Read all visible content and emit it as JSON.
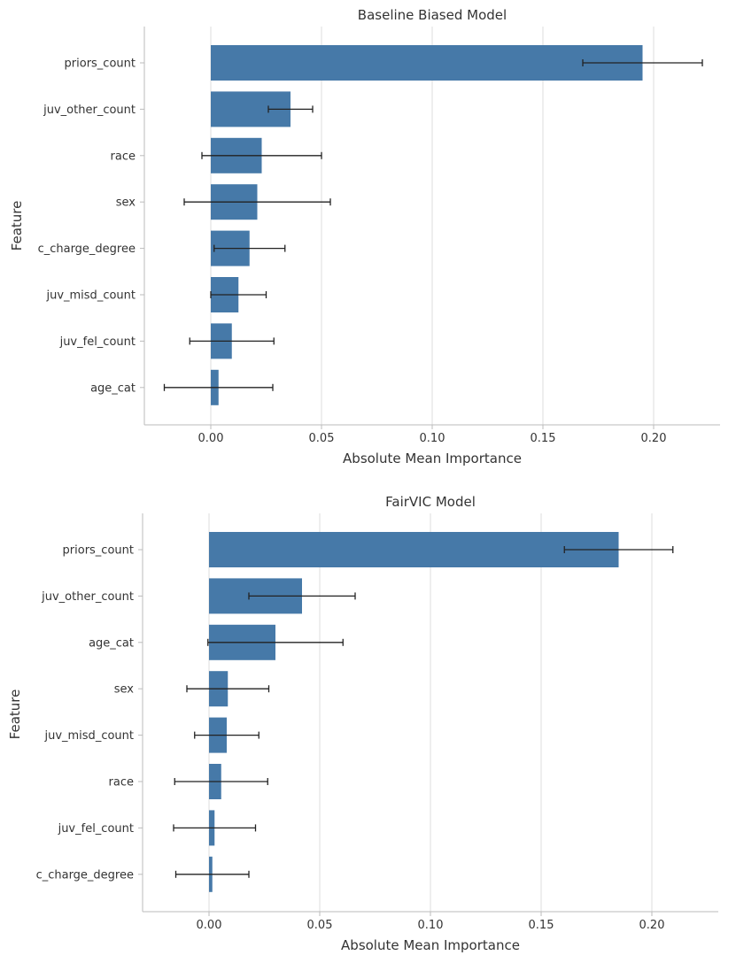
{
  "colors": {
    "bar": "#4679a8",
    "grid": "#dcdcdc",
    "axis": "#bbbbbb",
    "error": "#222222",
    "text": "#333333"
  },
  "chart_data": [
    {
      "type": "bar",
      "orientation": "horizontal",
      "title": "Baseline Biased Model",
      "xlabel": "Absolute Mean Importance",
      "ylabel": "Feature",
      "xlim": [
        -0.03,
        0.23
      ],
      "xticks": [
        0.0,
        0.05,
        0.1,
        0.15,
        0.2
      ],
      "xtick_labels": [
        "0.00",
        "0.05",
        "0.10",
        "0.15",
        "0.20"
      ],
      "grid": "vertical",
      "categories": [
        "priors_count",
        "juv_other_count",
        "race",
        "sex",
        "c_charge_degree",
        "juv_misd_count",
        "juv_fel_count",
        "age_cat"
      ],
      "values": [
        0.195,
        0.036,
        0.023,
        0.021,
        0.0175,
        0.0125,
        0.0095,
        0.0035
      ],
      "errors": [
        0.027,
        0.01,
        0.027,
        0.033,
        0.016,
        0.0125,
        0.019,
        0.0245
      ]
    },
    {
      "type": "bar",
      "orientation": "horizontal",
      "title": "FairVIC Model",
      "xlabel": "Absolute Mean Importance",
      "ylabel": "Feature",
      "xlim": [
        -0.03,
        0.23
      ],
      "xticks": [
        0.0,
        0.05,
        0.1,
        0.15,
        0.2
      ],
      "xtick_labels": [
        "0.00",
        "0.05",
        "0.10",
        "0.15",
        "0.20"
      ],
      "grid": "vertical",
      "categories": [
        "priors_count",
        "juv_other_count",
        "age_cat",
        "sex",
        "juv_misd_count",
        "race",
        "juv_fel_count",
        "c_charge_degree"
      ],
      "values": [
        0.185,
        0.042,
        0.03,
        0.0085,
        0.008,
        0.0055,
        0.0025,
        0.0015
      ],
      "errors": [
        0.0245,
        0.024,
        0.0305,
        0.0185,
        0.0145,
        0.021,
        0.0185,
        0.0165
      ]
    }
  ]
}
